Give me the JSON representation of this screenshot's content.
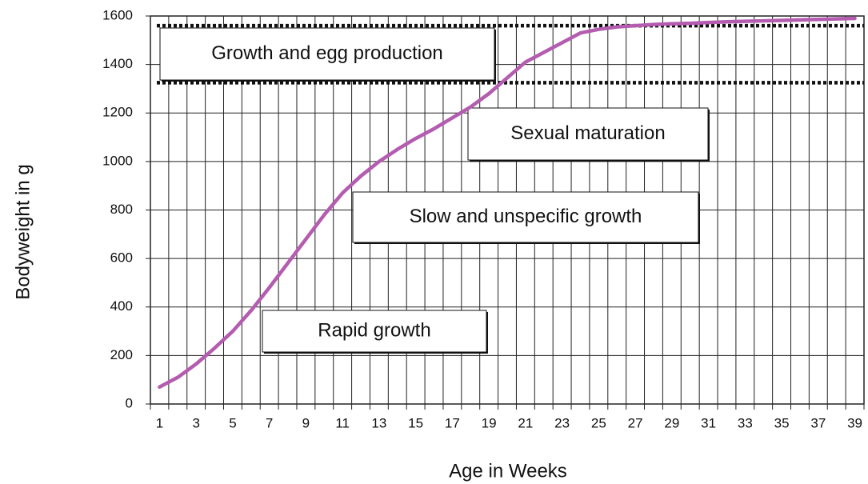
{
  "chart_data": {
    "type": "line",
    "x_label": "Age in Weeks",
    "y_label": "Bodyweight  in g",
    "categories": [
      "1",
      null,
      "3",
      null,
      "5",
      null,
      "7",
      null,
      "9",
      null,
      "11",
      null,
      "13",
      null,
      "15",
      null,
      "17",
      null,
      "19",
      null,
      "21",
      null,
      "23",
      null,
      "25",
      null,
      "27",
      null,
      "29",
      null,
      "31",
      null,
      "33",
      null,
      "35",
      null,
      "37",
      null,
      "39"
    ],
    "values": [
      70,
      110,
      165,
      230,
      300,
      385,
      480,
      580,
      680,
      780,
      870,
      940,
      1000,
      1050,
      1095,
      1135,
      1180,
      1225,
      1280,
      1345,
      1410,
      1450,
      1490,
      1530,
      1545,
      1555,
      1560,
      1565,
      1568,
      1570,
      1573,
      1576,
      1578,
      1580,
      1582,
      1584,
      1586,
      1588,
      1590
    ],
    "color": "#b45cb0",
    "ylim": [
      0,
      1600
    ],
    "yticks": [
      0,
      200,
      400,
      600,
      800,
      1000,
      1200,
      1400,
      1600
    ],
    "grid": true,
    "reference_lines": [
      1560,
      1325
    ],
    "annotations": [
      "Growth and egg production",
      "Sexual maturation",
      "Slow and unspecific growth",
      "Rapid growth"
    ]
  }
}
